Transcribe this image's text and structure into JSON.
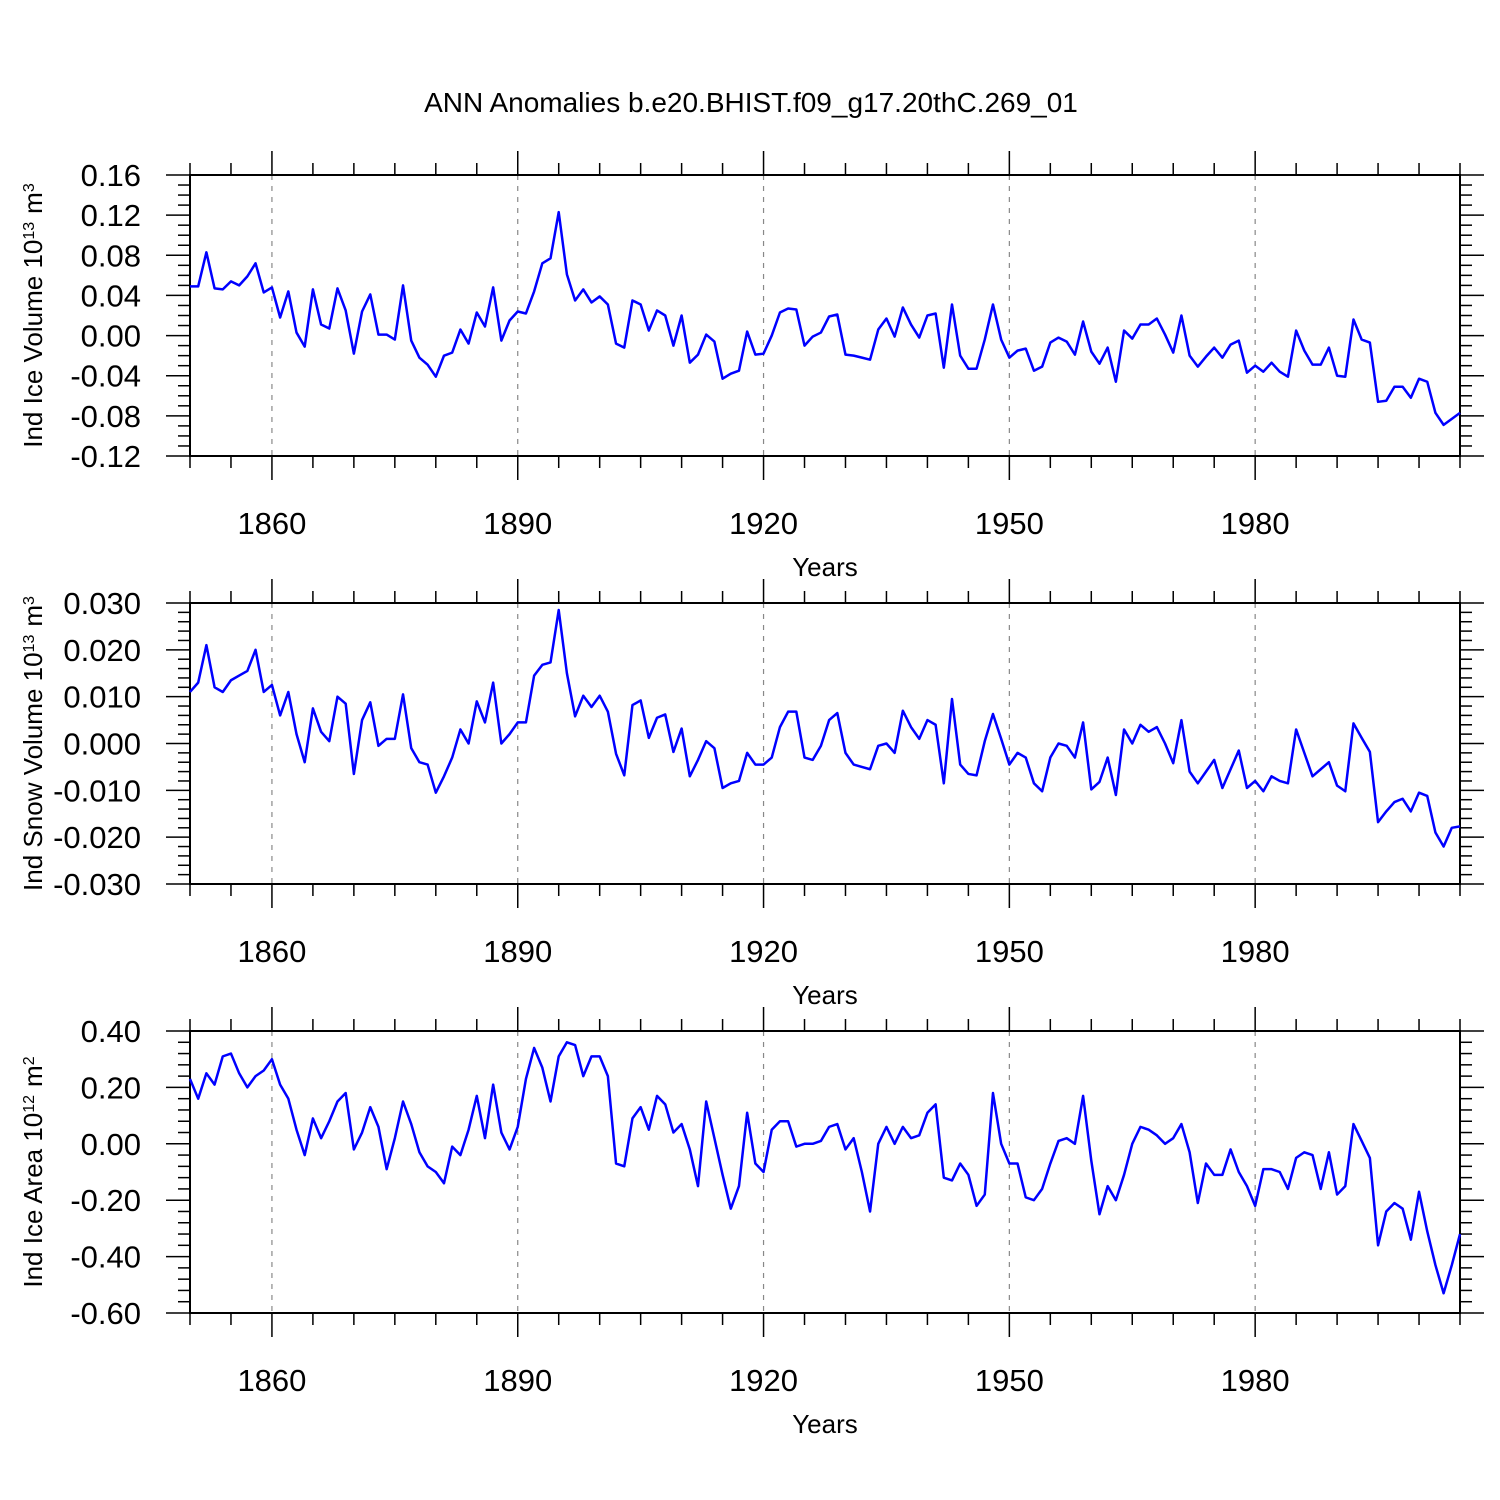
{
  "chart_data": [
    {
      "type": "line",
      "title": "ANN Anomalies b.e20.BHIST.f09_g17.20thC.269_01",
      "ylabel": [
        "Ind Ice Volume 10",
        "13",
        "m",
        "3"
      ],
      "xlabel": "Years",
      "color": "#0000ff",
      "xgrid": true,
      "xlim": [
        1850,
        2005
      ],
      "xticks": [
        1860,
        1890,
        1920,
        1950,
        1980
      ],
      "ylim": [
        -0.12,
        0.16
      ],
      "yticks": [
        -0.12,
        -0.08,
        -0.04,
        {
          "value": 0,
          "label": "0.00"
        },
        0.04,
        0.08,
        0.12,
        0.16
      ],
      "x": [
        1850,
        1851,
        1852,
        1853,
        1854,
        1855,
        1856,
        1857,
        1858,
        1859,
        1860,
        1861,
        1862,
        1863,
        1864,
        1865,
        1866,
        1867,
        1868,
        1869,
        1870,
        1871,
        1872,
        1873,
        1874,
        1875,
        1876,
        1877,
        1878,
        1879,
        1880,
        1881,
        1882,
        1883,
        1884,
        1885,
        1886,
        1887,
        1888,
        1889,
        1890,
        1891,
        1892,
        1893,
        1894,
        1895,
        1896,
        1897,
        1898,
        1899,
        1900,
        1901,
        1902,
        1903,
        1904,
        1905,
        1906,
        1907,
        1908,
        1909,
        1910,
        1911,
        1912,
        1913,
        1914,
        1915,
        1916,
        1917,
        1918,
        1919,
        1920,
        1921,
        1922,
        1923,
        1924,
        1925,
        1926,
        1927,
        1928,
        1929,
        1930,
        1931,
        1932,
        1933,
        1934,
        1935,
        1936,
        1937,
        1938,
        1939,
        1940,
        1941,
        1942,
        1943,
        1944,
        1945,
        1946,
        1947,
        1948,
        1949,
        1950,
        1951,
        1952,
        1953,
        1954,
        1955,
        1956,
        1957,
        1958,
        1959,
        1960,
        1961,
        1962,
        1963,
        1964,
        1965,
        1966,
        1967,
        1968,
        1969,
        1970,
        1971,
        1972,
        1973,
        1974,
        1975,
        1976,
        1977,
        1978,
        1979,
        1980,
        1981,
        1982,
        1983,
        1984,
        1985,
        1986,
        1987,
        1988,
        1989,
        1990,
        1991,
        1992,
        1993,
        1994,
        1995,
        1996,
        1997,
        1998,
        1999,
        2000,
        2001,
        2002,
        2003,
        2004,
        2005
      ],
      "values": [
        0.049,
        0.049,
        0.083,
        0.047,
        0.046,
        0.054,
        0.05,
        0.059,
        0.072,
        0.043,
        0.048,
        0.018,
        0.044,
        0.003,
        -0.011,
        0.046,
        0.011,
        0.007,
        0.047,
        0.025,
        -0.018,
        0.024,
        0.041,
        0.001,
        0.001,
        -0.004,
        0.05,
        -0.005,
        -0.022,
        -0.029,
        -0.041,
        -0.02,
        -0.017,
        0.006,
        -0.008,
        0.023,
        0.009,
        0.048,
        -0.005,
        0.015,
        0.024,
        0.022,
        0.044,
        0.072,
        0.077,
        0.123,
        0.061,
        0.035,
        0.046,
        0.033,
        0.039,
        0.031,
        -0.008,
        -0.012,
        0.035,
        0.031,
        0.005,
        0.025,
        0.02,
        -0.01,
        0.02,
        -0.027,
        -0.019,
        0.001,
        -0.006,
        -0.043,
        -0.038,
        -0.035,
        0.004,
        -0.019,
        -0.018,
        0.0,
        0.023,
        0.027,
        0.026,
        -0.01,
        -0.001,
        0.003,
        0.019,
        0.021,
        -0.019,
        -0.02,
        -0.022,
        -0.024,
        0.006,
        0.017,
        -0.001,
        0.028,
        0.011,
        -0.002,
        0.02,
        0.022,
        -0.032,
        0.031,
        -0.02,
        -0.033,
        -0.033,
        -0.004,
        0.031,
        -0.004,
        -0.022,
        -0.015,
        -0.013,
        -0.035,
        -0.031,
        -0.007,
        -0.002,
        -0.006,
        -0.019,
        0.014,
        -0.016,
        -0.028,
        -0.012,
        -0.046,
        0.005,
        -0.003,
        0.011,
        0.011,
        0.017,
        0.001,
        -0.017,
        0.02,
        -0.02,
        -0.031,
        -0.021,
        -0.012,
        -0.022,
        -0.009,
        -0.005,
        -0.037,
        -0.03,
        -0.036,
        -0.027,
        -0.036,
        -0.041,
        0.005,
        -0.015,
        -0.029,
        -0.029,
        -0.012,
        -0.04,
        -0.041,
        0.016,
        -0.004,
        -0.007,
        -0.066,
        -0.065,
        -0.051,
        -0.051,
        -0.062,
        -0.043,
        -0.046,
        -0.077,
        -0.089,
        -0.083,
        -0.077
      ]
    },
    {
      "type": "line",
      "ylabel": [
        "Ind Snow Volume 10",
        "13",
        "m",
        "3"
      ],
      "xlabel": "Years",
      "color": "#0000ff",
      "xgrid": true,
      "xlim": [
        1850,
        2005
      ],
      "xticks": [
        1860,
        1890,
        1920,
        1950,
        1980
      ],
      "ylim": [
        -0.03,
        0.03
      ],
      "yticks": [
        {
          "value": -0.03,
          "label": "-0.030"
        },
        {
          "value": -0.02,
          "label": "-0.020"
        },
        {
          "value": -0.01,
          "label": "-0.010"
        },
        {
          "value": 0,
          "label": "0.000"
        },
        {
          "value": 0.01,
          "label": "0.010"
        },
        {
          "value": 0.02,
          "label": "0.020"
        },
        {
          "value": 0.03,
          "label": "0.030"
        }
      ],
      "x": [
        1850,
        1851,
        1852,
        1853,
        1854,
        1855,
        1856,
        1857,
        1858,
        1859,
        1860,
        1861,
        1862,
        1863,
        1864,
        1865,
        1866,
        1867,
        1868,
        1869,
        1870,
        1871,
        1872,
        1873,
        1874,
        1875,
        1876,
        1877,
        1878,
        1879,
        1880,
        1881,
        1882,
        1883,
        1884,
        1885,
        1886,
        1887,
        1888,
        1889,
        1890,
        1891,
        1892,
        1893,
        1894,
        1895,
        1896,
        1897,
        1898,
        1899,
        1900,
        1901,
        1902,
        1903,
        1904,
        1905,
        1906,
        1907,
        1908,
        1909,
        1910,
        1911,
        1912,
        1913,
        1914,
        1915,
        1916,
        1917,
        1918,
        1919,
        1920,
        1921,
        1922,
        1923,
        1924,
        1925,
        1926,
        1927,
        1928,
        1929,
        1930,
        1931,
        1932,
        1933,
        1934,
        1935,
        1936,
        1937,
        1938,
        1939,
        1940,
        1941,
        1942,
        1943,
        1944,
        1945,
        1946,
        1947,
        1948,
        1949,
        1950,
        1951,
        1952,
        1953,
        1954,
        1955,
        1956,
        1957,
        1958,
        1959,
        1960,
        1961,
        1962,
        1963,
        1964,
        1965,
        1966,
        1967,
        1968,
        1969,
        1970,
        1971,
        1972,
        1973,
        1974,
        1975,
        1976,
        1977,
        1978,
        1979,
        1980,
        1981,
        1982,
        1983,
        1984,
        1985,
        1986,
        1987,
        1988,
        1989,
        1990,
        1991,
        1992,
        1993,
        1994,
        1995,
        1996,
        1997,
        1998,
        1999,
        2000,
        2001,
        2002,
        2003,
        2004,
        2005
      ],
      "values": [
        0.011,
        0.013,
        0.021,
        0.012,
        0.011,
        0.0135,
        0.0145,
        0.0155,
        0.02,
        0.011,
        0.0125,
        0.006,
        0.011,
        0.002,
        -0.004,
        0.0075,
        0.0025,
        0.0005,
        0.01,
        0.0085,
        -0.0065,
        0.005,
        0.0088,
        -0.0005,
        0.001,
        0.001,
        0.0105,
        -0.001,
        -0.004,
        -0.0045,
        -0.0105,
        -0.007,
        -0.003,
        0.003,
        0.0,
        0.009,
        0.0045,
        0.013,
        0.0,
        0.002,
        0.0045,
        0.0045,
        0.0145,
        0.0168,
        0.0173,
        0.0285,
        0.015,
        0.0058,
        0.0102,
        0.0078,
        0.0102,
        0.0068,
        -0.0022,
        -0.0068,
        0.0082,
        0.0092,
        0.0012,
        0.0055,
        0.0062,
        -0.0018,
        0.0032,
        -0.007,
        -0.0035,
        0.0005,
        -0.001,
        -0.0095,
        -0.0085,
        -0.008,
        -0.002,
        -0.0045,
        -0.0045,
        -0.003,
        0.0035,
        0.0068,
        0.0068,
        -0.003,
        -0.0035,
        -0.0005,
        0.005,
        0.0065,
        -0.002,
        -0.0045,
        -0.005,
        -0.0055,
        -0.0005,
        0.0,
        -0.002,
        0.007,
        0.0035,
        0.001,
        0.005,
        0.004,
        -0.0085,
        0.0095,
        -0.0045,
        -0.0065,
        -0.0068,
        0.0005,
        0.0063,
        0.001,
        -0.0045,
        -0.002,
        -0.003,
        -0.0085,
        -0.0102,
        -0.003,
        0.0,
        -0.0005,
        -0.003,
        0.0045,
        -0.0098,
        -0.0082,
        -0.003,
        -0.011,
        0.003,
        0.0,
        0.004,
        0.0025,
        0.0035,
        0.0,
        -0.0042,
        0.005,
        -0.006,
        -0.0085,
        -0.006,
        -0.0035,
        -0.0095,
        -0.0055,
        -0.0015,
        -0.0095,
        -0.008,
        -0.0102,
        -0.007,
        -0.008,
        -0.0085,
        0.003,
        -0.002,
        -0.007,
        -0.0055,
        -0.004,
        -0.009,
        -0.0102,
        0.0043,
        0.0012,
        -0.0018,
        -0.0168,
        -0.0145,
        -0.0125,
        -0.0118,
        -0.0145,
        -0.0105,
        -0.0112,
        -0.019,
        -0.022,
        -0.018,
        -0.0177
      ]
    },
    {
      "type": "line",
      "ylabel": [
        "Ind Ice Area 10",
        "12",
        "m",
        "2"
      ],
      "xlabel": "Years",
      "color": "#0000ff",
      "xgrid": true,
      "xlim": [
        1850,
        2005
      ],
      "xticks": [
        1860,
        1890,
        1920,
        1950,
        1980
      ],
      "ylim": [
        -0.6,
        0.4
      ],
      "yticks": [
        {
          "value": -0.6,
          "label": "-0.60"
        },
        {
          "value": -0.4,
          "label": "-0.40"
        },
        {
          "value": -0.2,
          "label": "-0.20"
        },
        {
          "value": 0,
          "label": "0.00"
        },
        {
          "value": 0.2,
          "label": "0.20"
        },
        {
          "value": 0.4,
          "label": "0.40"
        }
      ],
      "x": [
        1850,
        1851,
        1852,
        1853,
        1854,
        1855,
        1856,
        1857,
        1858,
        1859,
        1860,
        1861,
        1862,
        1863,
        1864,
        1865,
        1866,
        1867,
        1868,
        1869,
        1870,
        1871,
        1872,
        1873,
        1874,
        1875,
        1876,
        1877,
        1878,
        1879,
        1880,
        1881,
        1882,
        1883,
        1884,
        1885,
        1886,
        1887,
        1888,
        1889,
        1890,
        1891,
        1892,
        1893,
        1894,
        1895,
        1896,
        1897,
        1898,
        1899,
        1900,
        1901,
        1902,
        1903,
        1904,
        1905,
        1906,
        1907,
        1908,
        1909,
        1910,
        1911,
        1912,
        1913,
        1914,
        1915,
        1916,
        1917,
        1918,
        1919,
        1920,
        1921,
        1922,
        1923,
        1924,
        1925,
        1926,
        1927,
        1928,
        1929,
        1930,
        1931,
        1932,
        1933,
        1934,
        1935,
        1936,
        1937,
        1938,
        1939,
        1940,
        1941,
        1942,
        1943,
        1944,
        1945,
        1946,
        1947,
        1948,
        1949,
        1950,
        1951,
        1952,
        1953,
        1954,
        1955,
        1956,
        1957,
        1958,
        1959,
        1960,
        1961,
        1962,
        1963,
        1964,
        1965,
        1966,
        1967,
        1968,
        1969,
        1970,
        1971,
        1972,
        1973,
        1974,
        1975,
        1976,
        1977,
        1978,
        1979,
        1980,
        1981,
        1982,
        1983,
        1984,
        1985,
        1986,
        1987,
        1988,
        1989,
        1990,
        1991,
        1992,
        1993,
        1994,
        1995,
        1996,
        1997,
        1998,
        1999,
        2000,
        2001,
        2002,
        2003,
        2004,
        2005
      ],
      "values": [
        0.23,
        0.16,
        0.25,
        0.21,
        0.31,
        0.32,
        0.25,
        0.2,
        0.24,
        0.26,
        0.3,
        0.21,
        0.16,
        0.05,
        -0.04,
        0.09,
        0.02,
        0.08,
        0.15,
        0.18,
        -0.02,
        0.04,
        0.13,
        0.06,
        -0.09,
        0.02,
        0.15,
        0.07,
        -0.03,
        -0.08,
        -0.1,
        -0.14,
        -0.01,
        -0.04,
        0.05,
        0.17,
        0.02,
        0.21,
        0.04,
        -0.02,
        0.06,
        0.23,
        0.34,
        0.27,
        0.15,
        0.31,
        0.36,
        0.35,
        0.24,
        0.31,
        0.31,
        0.24,
        -0.07,
        -0.08,
        0.09,
        0.13,
        0.05,
        0.17,
        0.14,
        0.04,
        0.07,
        -0.02,
        -0.15,
        0.15,
        0.02,
        -0.11,
        -0.23,
        -0.15,
        0.11,
        -0.07,
        -0.1,
        0.05,
        0.08,
        0.08,
        -0.01,
        0.0,
        0.0,
        0.01,
        0.06,
        0.07,
        -0.02,
        0.02,
        -0.1,
        -0.24,
        0.0,
        0.06,
        0.0,
        0.06,
        0.02,
        0.03,
        0.11,
        0.14,
        -0.12,
        -0.13,
        -0.07,
        -0.11,
        -0.22,
        -0.18,
        0.18,
        0.0,
        -0.07,
        -0.07,
        -0.19,
        -0.2,
        -0.16,
        -0.07,
        0.01,
        0.02,
        0.0,
        0.17,
        -0.06,
        -0.25,
        -0.15,
        -0.2,
        -0.11,
        0.0,
        0.06,
        0.05,
        0.03,
        0.0,
        0.02,
        0.07,
        -0.03,
        -0.21,
        -0.07,
        -0.11,
        -0.11,
        -0.02,
        -0.1,
        -0.15,
        -0.22,
        -0.09,
        -0.09,
        -0.1,
        -0.16,
        -0.05,
        -0.03,
        -0.04,
        -0.16,
        -0.03,
        -0.18,
        -0.15,
        0.07,
        0.01,
        -0.05,
        -0.36,
        -0.24,
        -0.21,
        -0.23,
        -0.34,
        -0.17,
        -0.31,
        -0.43,
        -0.53,
        -0.43,
        -0.32
      ]
    }
  ]
}
